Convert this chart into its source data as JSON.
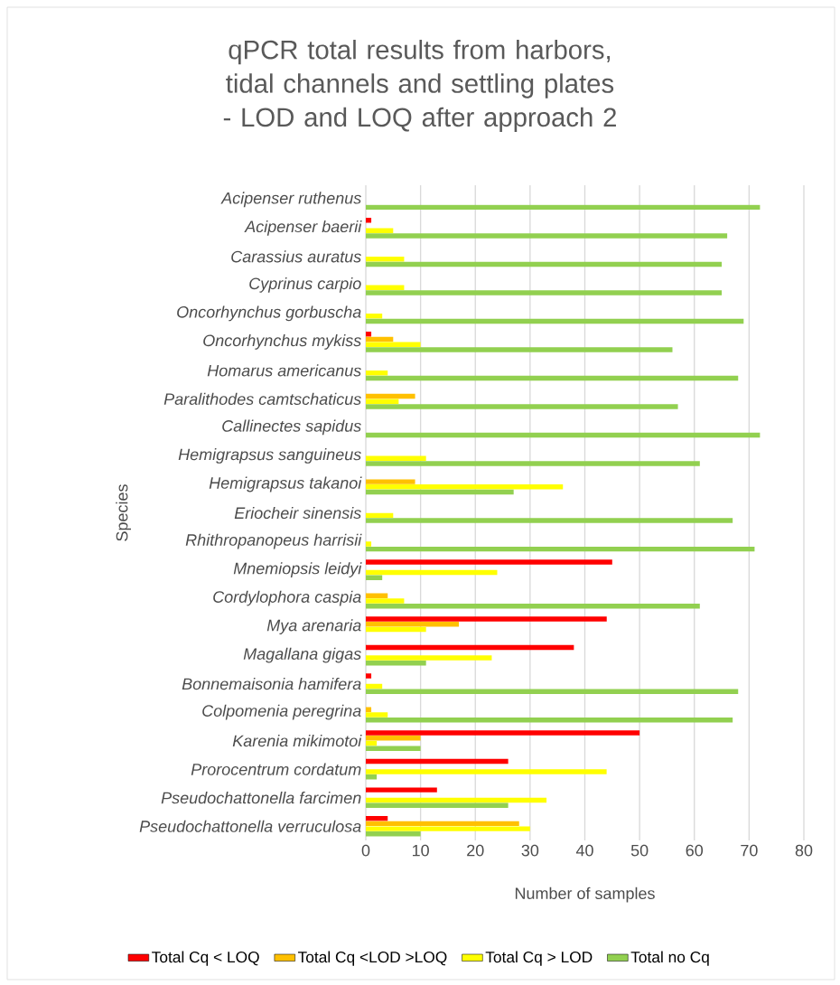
{
  "chart_data": {
    "type": "bar",
    "orientation": "horizontal",
    "title": "qPCR total results from harbors, tidal channels and settling plates - LOD and LOQ after approach 2",
    "xlabel": "Number of samples",
    "ylabel": "Species",
    "categories": [
      "Acipenser ruthenus",
      "Acipenser baerii",
      "Carassius auratus",
      "Cyprinus carpio",
      "Oncorhynchus gorbuscha",
      "Oncorhynchus mykiss",
      "Homarus americanus",
      "Paralithodes camtschaticus",
      "Callinectes sapidus",
      "Hemigrapsus sanguineus",
      "Hemigrapsus takanoi",
      "Eriocheir sinensis",
      "Rhithropanopeus harrisii",
      "Mnemiopsis leidyi",
      "Cordylophora caspia",
      "Mya arenaria",
      "Magallana gigas",
      "Bonnemaisonia hamifera",
      "Colpomenia peregrina",
      "Karenia mikimotoi",
      "Prorocentrum cordatum",
      "Pseudochattonella farcimen",
      "Pseudochattonella verruculosa"
    ],
    "series": [
      {
        "name": "Total Cq < LOQ",
        "color": "#ff0000",
        "values": [
          0,
          1,
          0,
          0,
          0,
          1,
          0,
          0,
          0,
          0,
          0,
          0,
          0,
          45,
          0,
          44,
          38,
          1,
          0,
          50,
          26,
          13,
          4
        ]
      },
      {
        "name": "Total Cq <LOD >LOQ",
        "color": "#ffc000",
        "values": [
          0,
          0,
          0,
          0,
          0,
          5,
          0,
          9,
          0,
          0,
          9,
          0,
          0,
          0,
          4,
          17,
          0,
          0,
          1,
          10,
          0,
          0,
          28
        ]
      },
      {
        "name": "Total Cq > LOD",
        "color": "#ffff00",
        "values": [
          0,
          5,
          7,
          7,
          3,
          10,
          4,
          6,
          0,
          11,
          36,
          5,
          1,
          24,
          7,
          11,
          23,
          3,
          4,
          2,
          44,
          33,
          30
        ]
      },
      {
        "name": "Total no Cq",
        "color": "#92d050",
        "values": [
          72,
          66,
          65,
          65,
          69,
          56,
          68,
          57,
          72,
          61,
          27,
          67,
          71,
          3,
          61,
          0,
          11,
          68,
          67,
          10,
          2,
          26,
          10
        ]
      }
    ],
    "xlim": [
      0,
      80
    ],
    "xticks": [
      0,
      10,
      20,
      30,
      40,
      50,
      60,
      70,
      80
    ],
    "grid": "x",
    "legend": "bottom"
  }
}
